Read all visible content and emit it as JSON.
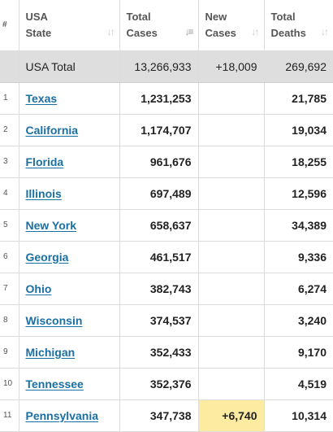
{
  "header": {
    "index": "#",
    "state": [
      "USA",
      "State"
    ],
    "total_cases": [
      "Total",
      "Cases"
    ],
    "new_cases": [
      "New",
      "Cases"
    ],
    "total_deaths": [
      "Total",
      "Deaths"
    ],
    "sort_icon": "↓↑"
  },
  "total_row": {
    "label": "USA Total",
    "total_cases": "13,266,933",
    "new_cases": "+18,009",
    "total_deaths": "269,692"
  },
  "rows": [
    {
      "index": "1",
      "state": "Texas",
      "total_cases": "1,231,253",
      "new_cases": "",
      "total_deaths": "21,785"
    },
    {
      "index": "2",
      "state": "California",
      "total_cases": "1,174,707",
      "new_cases": "",
      "total_deaths": "19,034"
    },
    {
      "index": "3",
      "state": "Florida",
      "total_cases": "961,676",
      "new_cases": "",
      "total_deaths": "18,255"
    },
    {
      "index": "4",
      "state": "Illinois",
      "total_cases": "697,489",
      "new_cases": "",
      "total_deaths": "12,596"
    },
    {
      "index": "5",
      "state": "New York",
      "total_cases": "658,637",
      "new_cases": "",
      "total_deaths": "34,389"
    },
    {
      "index": "6",
      "state": "Georgia",
      "total_cases": "461,517",
      "new_cases": "",
      "total_deaths": "9,336"
    },
    {
      "index": "7",
      "state": "Ohio",
      "total_cases": "382,743",
      "new_cases": "",
      "total_deaths": "6,274"
    },
    {
      "index": "8",
      "state": "Wisconsin",
      "total_cases": "374,537",
      "new_cases": "",
      "total_deaths": "3,240"
    },
    {
      "index": "9",
      "state": "Michigan",
      "total_cases": "352,433",
      "new_cases": "",
      "total_deaths": "9,170"
    },
    {
      "index": "10",
      "state": "Tennessee",
      "total_cases": "352,376",
      "new_cases": "",
      "total_deaths": "4,519"
    },
    {
      "index": "11",
      "state": "Pennsylvania",
      "total_cases": "347,738",
      "new_cases": "+6,740",
      "total_deaths": "10,314"
    }
  ],
  "colors": {
    "link": "#1a6fa3",
    "total_row_bg": "#dedede",
    "new_cases_highlight": "#fdeba1"
  }
}
